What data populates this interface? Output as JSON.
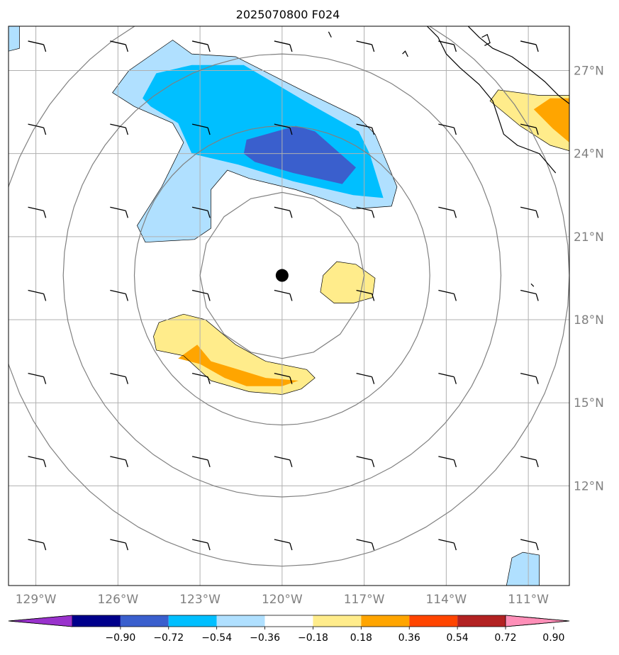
{
  "title": "2025070800 F024",
  "map": {
    "lon_range": [
      -130,
      -109.5
    ],
    "lat_range": [
      8.4,
      28.6
    ],
    "gridlines": true,
    "storm_center": {
      "lon": -120.0,
      "lat": 19.6
    },
    "lon_ticks": [
      {
        "value": -129,
        "label": "129°W"
      },
      {
        "value": -126,
        "label": "126°W"
      },
      {
        "value": -123,
        "label": "123°W"
      },
      {
        "value": -120,
        "label": "120°W"
      },
      {
        "value": -117,
        "label": "117°W"
      },
      {
        "value": -114,
        "label": "114°W"
      },
      {
        "value": -111,
        "label": "111°W"
      }
    ],
    "lat_ticks": [
      {
        "value": 27,
        "label": "27°N"
      },
      {
        "value": 24,
        "label": "24°N"
      },
      {
        "value": 21,
        "label": "21°N"
      },
      {
        "value": 18,
        "label": "18°N"
      },
      {
        "value": 15,
        "label": "15°N"
      },
      {
        "value": 12,
        "label": "12°N"
      }
    ],
    "range_rings_deg": [
      3,
      5.4,
      8,
      10.5
    ]
  },
  "colorbar": {
    "levels": [
      "−0.90",
      "−0.72",
      "−0.54",
      "−0.36",
      "−0.18",
      "0.18",
      "0.36",
      "0.54",
      "0.72",
      "0.90"
    ],
    "colors": [
      "#9932cc",
      "#00008b",
      "#3a5fcd",
      "#00bfff",
      "#b0e0ff",
      "#ffffff",
      "#ffec8b",
      "#ffa500",
      "#ff4500",
      "#b22222",
      "#ff8fb8"
    ],
    "extend": "both"
  },
  "chart_data": {
    "type": "map",
    "title": "2025070800 F024",
    "field_categories": [
      {
        "name": "very_light_blue",
        "range": [
          -0.36,
          -0.18
        ],
        "color": "#b0e0ff"
      },
      {
        "name": "deep_sky_blue",
        "range": [
          -0.54,
          -0.36
        ],
        "color": "#00bfff"
      },
      {
        "name": "royal_blue",
        "range": [
          -0.72,
          -0.54
        ],
        "color": "#3a5fcd"
      },
      {
        "name": "light_yellow",
        "range": [
          0.18,
          0.36
        ],
        "color": "#ffec8b"
      },
      {
        "name": "orange",
        "range": [
          0.36,
          0.54
        ],
        "color": "#ffa500"
      }
    ],
    "contour_regions": [
      {
        "level": "very_light_blue",
        "points": [
          [
            -124.0,
            28.1
          ],
          [
            -123.3,
            27.6
          ],
          [
            -121.7,
            27.5
          ],
          [
            -119.3,
            26.3
          ],
          [
            -117.2,
            25.3
          ],
          [
            -116.6,
            24.7
          ],
          [
            -115.8,
            22.8
          ],
          [
            -116.0,
            22.1
          ],
          [
            -117.4,
            22.0
          ],
          [
            -119.5,
            22.7
          ],
          [
            -121.2,
            23.1
          ],
          [
            -122.0,
            23.4
          ],
          [
            -122.6,
            22.7
          ],
          [
            -122.6,
            21.3
          ],
          [
            -123.2,
            20.9
          ],
          [
            -125.0,
            20.8
          ],
          [
            -125.3,
            21.4
          ],
          [
            -124.4,
            22.8
          ],
          [
            -123.6,
            24.4
          ],
          [
            -124.0,
            25.1
          ],
          [
            -125.4,
            25.7
          ],
          [
            -126.2,
            26.2
          ],
          [
            -125.6,
            27.0
          ]
        ]
      },
      {
        "level": "very_light_blue",
        "points": [
          [
            -130,
            28.6
          ],
          [
            -129.6,
            28.6
          ],
          [
            -129.6,
            27.8
          ],
          [
            -130,
            27.7
          ]
        ]
      },
      {
        "level": "very_light_blue",
        "points": [
          [
            -111.6,
            9.4
          ],
          [
            -111.2,
            9.6
          ],
          [
            -110.6,
            9.5
          ],
          [
            -110.6,
            8.4
          ],
          [
            -111.8,
            8.4
          ]
        ]
      },
      {
        "level": "deep_sky_blue",
        "points": [
          [
            -124.6,
            26.9
          ],
          [
            -123.3,
            27.2
          ],
          [
            -121.4,
            27.2
          ],
          [
            -119.0,
            25.8
          ],
          [
            -117.2,
            24.8
          ],
          [
            -116.8,
            24.0
          ],
          [
            -116.3,
            22.4
          ],
          [
            -117.4,
            22.5
          ],
          [
            -119.6,
            23.0
          ],
          [
            -121.6,
            23.6
          ],
          [
            -123.3,
            24.0
          ],
          [
            -123.8,
            25.1
          ],
          [
            -124.8,
            25.7
          ],
          [
            -125.1,
            26.0
          ]
        ]
      },
      {
        "level": "royal_blue",
        "points": [
          [
            -121.3,
            24.5
          ],
          [
            -119.5,
            25.0
          ],
          [
            -118.8,
            24.8
          ],
          [
            -117.3,
            23.5
          ],
          [
            -117.8,
            22.9
          ],
          [
            -119.6,
            23.3
          ],
          [
            -121.0,
            23.7
          ],
          [
            -121.4,
            24.0
          ]
        ]
      },
      {
        "level": "light_yellow",
        "points": [
          [
            -118.5,
            19.6
          ],
          [
            -118.0,
            20.1
          ],
          [
            -117.3,
            20.0
          ],
          [
            -116.6,
            19.5
          ],
          [
            -116.7,
            18.8
          ],
          [
            -117.4,
            18.6
          ],
          [
            -118.1,
            18.6
          ],
          [
            -118.6,
            19.0
          ]
        ]
      },
      {
        "level": "light_yellow",
        "points": [
          [
            -124.5,
            17.9
          ],
          [
            -123.6,
            18.2
          ],
          [
            -122.8,
            18.0
          ],
          [
            -121.7,
            17.1
          ],
          [
            -120.6,
            16.5
          ],
          [
            -119.1,
            16.2
          ],
          [
            -118.8,
            15.9
          ],
          [
            -119.3,
            15.5
          ],
          [
            -120.0,
            15.3
          ],
          [
            -121.2,
            15.4
          ],
          [
            -122.6,
            15.8
          ],
          [
            -123.6,
            16.7
          ],
          [
            -124.6,
            16.9
          ],
          [
            -124.7,
            17.4
          ]
        ]
      },
      {
        "level": "orange",
        "points": [
          [
            -123.1,
            17.1
          ],
          [
            -122.6,
            16.5
          ],
          [
            -121.6,
            16.2
          ],
          [
            -120.6,
            15.9
          ],
          [
            -119.4,
            15.8
          ],
          [
            -120.0,
            15.6
          ],
          [
            -121.3,
            15.6
          ],
          [
            -122.1,
            15.9
          ],
          [
            -123.0,
            16.4
          ],
          [
            -123.8,
            16.6
          ]
        ]
      },
      {
        "level": "light_yellow",
        "points": [
          [
            -112.1,
            26.3
          ],
          [
            -110.6,
            26.1
          ],
          [
            -109.5,
            26.1
          ],
          [
            -109.5,
            24.1
          ],
          [
            -110.2,
            24.3
          ],
          [
            -111.3,
            25.0
          ],
          [
            -112.4,
            25.9
          ]
        ]
      },
      {
        "level": "orange",
        "points": [
          [
            -110.8,
            25.6
          ],
          [
            -110.2,
            26.0
          ],
          [
            -109.5,
            26.0
          ],
          [
            -109.5,
            24.4
          ],
          [
            -110.1,
            24.9
          ]
        ]
      }
    ],
    "land_outlines": [
      {
        "name": "baja_california_coast",
        "points": [
          [
            -114.7,
            28.6
          ],
          [
            -114.3,
            28.2
          ],
          [
            -114.0,
            27.6
          ],
          [
            -113.5,
            27.1
          ],
          [
            -112.8,
            26.5
          ],
          [
            -112.3,
            25.9
          ],
          [
            -112.1,
            25.3
          ],
          [
            -111.9,
            24.7
          ],
          [
            -111.4,
            24.3
          ],
          [
            -110.6,
            24.0
          ],
          [
            -110.0,
            23.3
          ]
        ]
      },
      {
        "name": "mainland_coast",
        "points": [
          [
            -113.2,
            28.6
          ],
          [
            -112.8,
            28.2
          ],
          [
            -112.3,
            27.8
          ],
          [
            -111.6,
            27.5
          ],
          [
            -110.9,
            27.0
          ],
          [
            -110.4,
            26.6
          ],
          [
            -109.9,
            26.1
          ],
          [
            -109.5,
            25.8
          ]
        ]
      },
      {
        "name": "island",
        "points": [
          [
            -112.7,
            28.2
          ],
          [
            -112.5,
            28.3
          ],
          [
            -112.4,
            28.0
          ],
          [
            -112.6,
            27.9
          ]
        ]
      },
      {
        "name": "small_island",
        "points": [
          [
            -115.6,
            27.6
          ],
          [
            -115.5,
            27.7
          ],
          [
            -115.4,
            27.5
          ]
        ]
      },
      {
        "name": "tiny_island_1",
        "points": [
          [
            -118.3,
            28.4
          ],
          [
            -118.2,
            28.2
          ]
        ]
      },
      {
        "name": "tiny_island_2",
        "points": [
          [
            -110.9,
            19.3
          ],
          [
            -110.8,
            19.2
          ]
        ]
      }
    ],
    "wind_barbs": {
      "lons": [
        -129,
        -126,
        -123,
        -120,
        -117,
        -114,
        -111
      ],
      "lats": [
        28,
        25,
        22,
        19,
        16,
        13,
        10
      ]
    }
  }
}
